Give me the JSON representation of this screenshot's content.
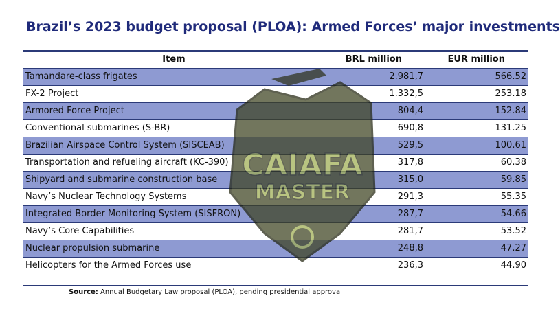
{
  "header": {
    "title": "Brazil’s 2023 budget proposal (PLOA): Armed Forces’ major investments"
  },
  "table": {
    "columns": [
      "Item",
      "BRL million",
      "EUR million"
    ],
    "rows": [
      [
        "Tamandare-class frigates",
        "2.981,7",
        "566.52"
      ],
      [
        "FX-2 Project",
        "1.332,5",
        "253.18"
      ],
      [
        "Armored Force Project",
        "804,4",
        "152.84"
      ],
      [
        "Conventional submarines (S-BR)",
        "690,8",
        "131.25"
      ],
      [
        "Brazilian Airspace Control System (SISCEAB)",
        "529,5",
        "100.61"
      ],
      [
        "Transportation and refueling aircraft (KC-390)",
        "317,8",
        "60.38"
      ],
      [
        "Shipyard and submarine construction base",
        "315,0",
        "59.85"
      ],
      [
        "Navy’s Nuclear Technology Systems",
        "291,3",
        "55.35"
      ],
      [
        "Integrated Border Monitoring System (SISFRON)",
        "287,7",
        "54.66"
      ],
      [
        "Navy’s Core Capabilities",
        "281,7",
        "53.52"
      ],
      [
        "Nuclear propulsion submarine",
        "248,8",
        "47.27"
      ],
      [
        "Helicopters for the Armed Forces use",
        "236,3",
        "44.90"
      ]
    ]
  },
  "source": {
    "label": "Source:",
    "text": "Annual Budgetary Law proposal (PLOA), pending presidential approval"
  },
  "watermark": {
    "line1": "CAIAFA",
    "line2": "MASTER"
  }
}
